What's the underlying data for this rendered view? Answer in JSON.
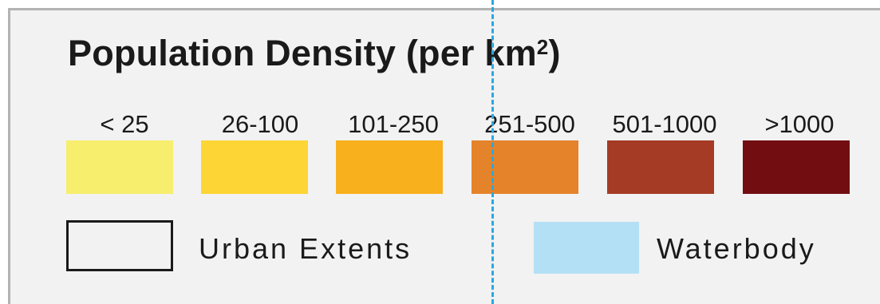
{
  "legend": {
    "title_main": "Population Density (per km",
    "title_superscript": "2",
    "title_close": ")",
    "classes": [
      {
        "label": "< 25",
        "color": "#f7ee6e"
      },
      {
        "label": "26-100",
        "color": "#fdd535"
      },
      {
        "label": "101-250",
        "color": "#f8b01c"
      },
      {
        "label": "251-500",
        "color": "#e5832a"
      },
      {
        "label": "501-1000",
        "color": "#a53b24"
      },
      {
        "label": ">1000",
        "color": "#720e11"
      }
    ],
    "urban_extents": {
      "label": "Urban Extents",
      "border_color": "#1a1a1a"
    },
    "waterbody": {
      "label": "Waterbody",
      "color": "#b4e0f5"
    },
    "guide_line_color": "#29a9e0"
  }
}
